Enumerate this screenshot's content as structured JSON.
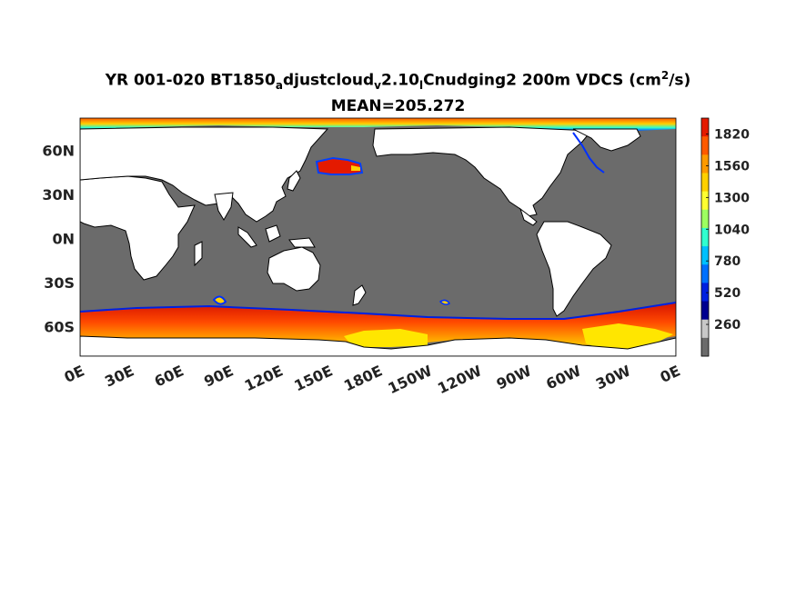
{
  "title": {
    "p1": "YR 001-020 BT1850",
    "s1": "a",
    "p2": "djustcloud",
    "s2": "v",
    "p3": "2.10",
    "s3": "l",
    "p4": "Cnudging2 200m VDCS (cm",
    "sup": "2",
    "p5": "/s)"
  },
  "subtitle": "MEAN=205.272",
  "colors": {
    "land": "#ffffff",
    "ocean_low": "#6b6b6b",
    "missing": "#c8c8c8",
    "coast": "#000000"
  },
  "chart_data": {
    "type": "heatmap",
    "y_ticks": [
      "60N",
      "30N",
      "0N",
      "30S",
      "60S"
    ],
    "y_tick_values": [
      60,
      30,
      0,
      -30,
      -60
    ],
    "x_ticks": [
      "0E",
      "30E",
      "60E",
      "90E",
      "120E",
      "150E",
      "180E",
      "150W",
      "120W",
      "90W",
      "60W",
      "30W",
      "0E"
    ],
    "x_tick_values": [
      0,
      30,
      60,
      90,
      120,
      150,
      180,
      210,
      240,
      270,
      300,
      330,
      360
    ],
    "xlim": [
      0,
      360
    ],
    "ylim": [
      -80,
      82
    ],
    "colorbar": {
      "ticks": [
        "1820",
        "1560",
        "1300",
        "1040",
        "780",
        "520",
        "260"
      ],
      "tick_values": [
        1820,
        1560,
        1300,
        1040,
        780,
        520,
        260
      ],
      "range": [
        0,
        1950
      ],
      "colors": [
        "#e41a00",
        "#ff5a00",
        "#ff9a00",
        "#ffd000",
        "#ffff30",
        "#9dff60",
        "#30ffd0",
        "#00c0ff",
        "#0070ff",
        "#0020e0",
        "#000090",
        "#c8c8c8",
        "#6b6b6b"
      ]
    },
    "mean": 205.272
  }
}
